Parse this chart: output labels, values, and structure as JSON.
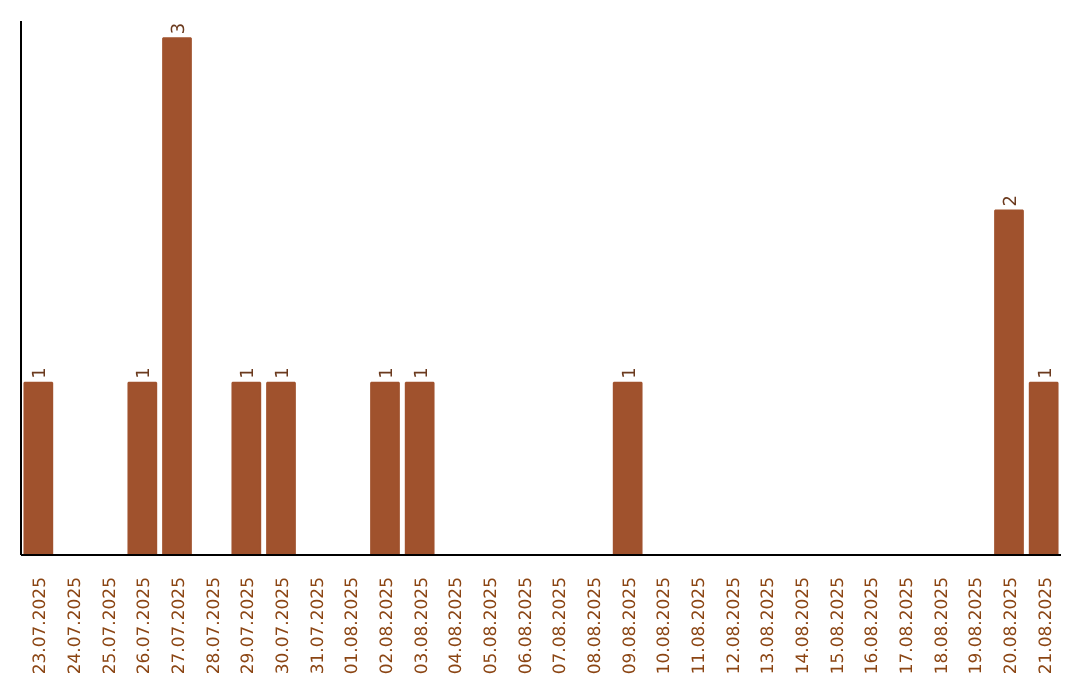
{
  "chart_data": {
    "type": "bar",
    "categories": [
      "23.07.2025",
      "24.07.2025",
      "25.07.2025",
      "26.07.2025",
      "27.07.2025",
      "28.07.2025",
      "29.07.2025",
      "30.07.2025",
      "31.07.2025",
      "01.08.2025",
      "02.08.2025",
      "03.08.2025",
      "04.08.2025",
      "05.08.2025",
      "06.08.2025",
      "07.08.2025",
      "08.08.2025",
      "09.08.2025",
      "10.08.2025",
      "11.08.2025",
      "12.08.2025",
      "13.08.2025",
      "14.08.2025",
      "15.08.2025",
      "16.08.2025",
      "17.08.2025",
      "18.08.2025",
      "19.08.2025",
      "20.08.2025",
      "21.08.2025"
    ],
    "values": [
      1,
      0,
      0,
      1,
      3,
      0,
      1,
      1,
      0,
      0,
      1,
      1,
      0,
      0,
      0,
      0,
      0,
      1,
      0,
      0,
      0,
      0,
      0,
      0,
      0,
      0,
      0,
      0,
      2,
      1
    ],
    "value_labels": [
      "1",
      null,
      null,
      "1",
      "3",
      null,
      "1",
      "1",
      null,
      null,
      "1",
      "1",
      null,
      null,
      null,
      null,
      null,
      "1",
      null,
      null,
      null,
      null,
      null,
      null,
      null,
      null,
      null,
      null,
      "2",
      "1"
    ],
    "color": "#a0522d",
    "ylim": [
      0,
      3.1
    ],
    "tick_labels": "x",
    "grid": false
  }
}
